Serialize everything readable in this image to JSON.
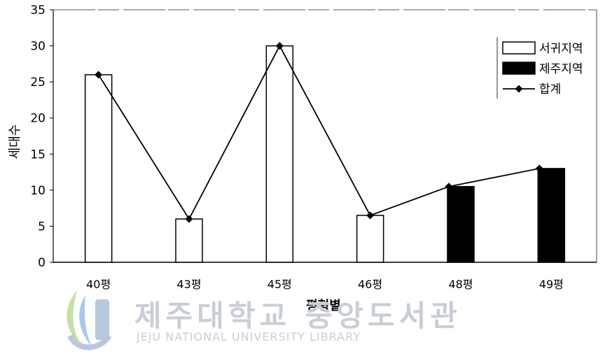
{
  "chart_data": {
    "type": "bar",
    "categories": [
      "40평",
      "43평",
      "45평",
      "46평",
      "48평",
      "49평"
    ],
    "series": [
      {
        "name": "서귀지역",
        "kind": "bar",
        "fill": "#ffffff",
        "values": [
          26,
          6,
          30,
          6.5,
          0,
          0
        ]
      },
      {
        "name": "제주지역",
        "kind": "bar",
        "fill": "#000000",
        "values": [
          0,
          0,
          0,
          0,
          10.5,
          13
        ]
      },
      {
        "name": "합계",
        "kind": "line",
        "marker": "diamond",
        "values": [
          26,
          6,
          30,
          6.5,
          10.5,
          13
        ]
      }
    ],
    "title": "",
    "xlabel": "평형별",
    "ylabel": "세대수",
    "ylim": [
      0,
      35
    ],
    "yticks": [
      0,
      5,
      10,
      15,
      20,
      25,
      30,
      35
    ],
    "legend_position": "top-right",
    "grid": false
  },
  "watermark": {
    "title": "제주대학교 중앙도서관",
    "subtitle": "JEJU NATIONAL UNIVERSITY LIBRARY",
    "badge": "JEJU"
  }
}
